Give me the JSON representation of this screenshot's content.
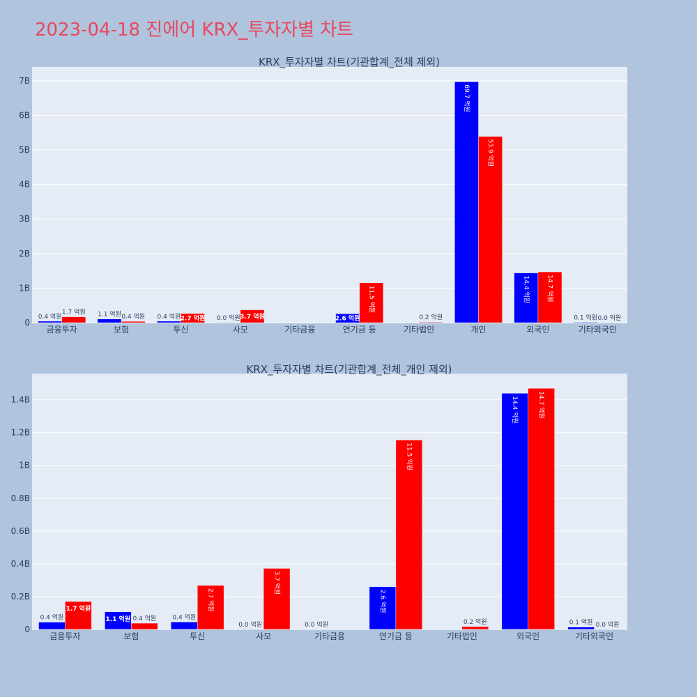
{
  "page": {
    "title": "2023-04-18 진에어 KRX_투자자별 차트"
  },
  "colors": {
    "series_a": "#0000ff",
    "series_b": "#ff0000",
    "plot_bg": "#e5ecf6",
    "paper_bg": "#b0c4de",
    "title": "#e8475d",
    "text": "#2a3f5f"
  },
  "chart_data": [
    {
      "type": "bar",
      "title": "KRX_투자자별 차트(기관합계_전체 제외)",
      "categories": [
        "금융투자",
        "보험",
        "투신",
        "사모",
        "기타금융",
        "연기금 등",
        "기타법인",
        "개인",
        "외국인",
        "기타외국인"
      ],
      "yticks": [
        0,
        1000000000,
        2000000000,
        3000000000,
        4000000000,
        5000000000,
        6000000000,
        7000000000
      ],
      "ytick_labels": [
        "0",
        "1B",
        "2B",
        "3B",
        "4B",
        "5B",
        "6B",
        "7B"
      ],
      "ylim": [
        0,
        7400000000
      ],
      "grid": true,
      "series": [
        {
          "values": [
            44000000,
            107000000,
            45000000,
            1000000,
            0,
            260000000,
            0,
            6970000000,
            1440000000,
            14000000
          ],
          "labels": [
            "0.4 억원",
            "1.1 억원",
            "0.4 억원",
            "0.0 억원",
            "",
            "2.6 억원",
            "",
            "69.7 억원",
            "14.4 억원",
            "0.1 억원"
          ]
        },
        {
          "values": [
            170000000,
            38000000,
            268000000,
            372000000,
            0,
            1155000000,
            17000000,
            5390000000,
            1470000000,
            1000000
          ],
          "labels": [
            "1.7 억원",
            "0.4 억원",
            "2.7 억원",
            "3.7 억원",
            "",
            "11.5 억원",
            "0.2 억원",
            "53.9 억원",
            "14.7 억원",
            "0.0 억원"
          ]
        }
      ]
    },
    {
      "type": "bar",
      "title": "KRX_투자자별 차트(기관합계_전체_개인 제외)",
      "categories": [
        "금융투자",
        "보험",
        "투신",
        "사모",
        "기타금융",
        "연기금 등",
        "기타법인",
        "외국인",
        "기타외국인"
      ],
      "yticks": [
        0,
        200000000,
        400000000,
        600000000,
        800000000,
        1000000000,
        1200000000,
        1400000000
      ],
      "ytick_labels": [
        "0",
        "0.2B",
        "0.4B",
        "0.6B",
        "0.8B",
        "1B",
        "1.2B",
        "1.4B"
      ],
      "ylim": [
        0,
        1560000000
      ],
      "grid": true,
      "series": [
        {
          "values": [
            44000000,
            107000000,
            45000000,
            1000000,
            0,
            260000000,
            0,
            1440000000,
            14000000
          ],
          "labels": [
            "0.4 억원",
            "1.1 억원",
            "0.4 억원",
            "0.0 억원",
            "0.0 억원",
            "2.6 억원",
            "",
            "14.4 억원",
            "0.1 억원"
          ]
        },
        {
          "values": [
            170000000,
            38000000,
            268000000,
            372000000,
            0,
            1155000000,
            17000000,
            1470000000,
            1000000
          ],
          "labels": [
            "1.7 억원",
            "0.4 억원",
            "2.7 억원",
            "3.7 억원",
            "",
            "11.5 억원",
            "0.2 억원",
            "14.7 억원",
            "0.0 억원"
          ]
        }
      ]
    }
  ]
}
